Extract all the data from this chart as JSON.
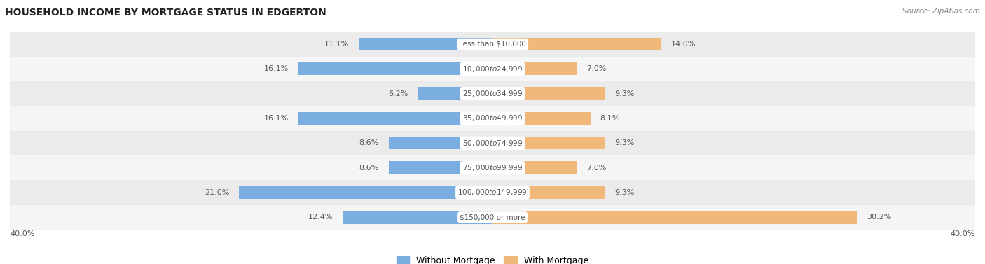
{
  "title": "HOUSEHOLD INCOME BY MORTGAGE STATUS IN EDGERTON",
  "source": "Source: ZipAtlas.com",
  "categories": [
    "Less than $10,000",
    "$10,000 to $24,999",
    "$25,000 to $34,999",
    "$35,000 to $49,999",
    "$50,000 to $74,999",
    "$75,000 to $99,999",
    "$100,000 to $149,999",
    "$150,000 or more"
  ],
  "without_mortgage": [
    11.1,
    16.1,
    6.2,
    16.1,
    8.6,
    8.6,
    21.0,
    12.4
  ],
  "with_mortgage": [
    14.0,
    7.0,
    9.3,
    8.1,
    9.3,
    7.0,
    9.3,
    30.2
  ],
  "color_without": "#7aade0",
  "color_with": "#f0b87a",
  "axis_limit": 40.0,
  "row_colors": [
    "#ebebeb",
    "#f5f5f5"
  ],
  "legend_label_without": "Without Mortgage",
  "legend_label_with": "With Mortgage",
  "axis_label_left": "40.0%",
  "axis_label_right": "40.0%",
  "fig_bg": "#ffffff",
  "label_box_color": "#ffffff",
  "label_text_color": "#555555",
  "value_text_color": "#555555"
}
